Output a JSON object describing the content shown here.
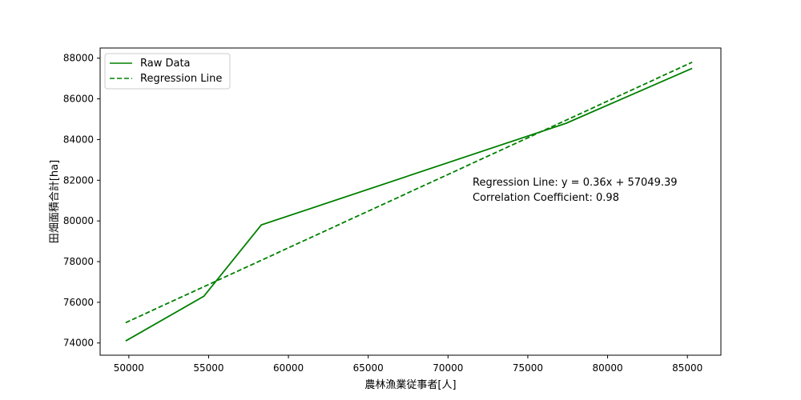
{
  "chart_data": {
    "type": "line",
    "xlabel": "農林漁業従事者[人]",
    "ylabel": "田畑面積合計[ha]",
    "xlim": [
      48200,
      87100
    ],
    "ylim": [
      73400,
      88500
    ],
    "xticks": [
      50000,
      55000,
      60000,
      65000,
      70000,
      75000,
      80000,
      85000
    ],
    "yticks": [
      74000,
      76000,
      78000,
      80000,
      82000,
      84000,
      86000,
      88000
    ],
    "grid": false,
    "legend_position": "top-left",
    "series": [
      {
        "name": "Raw Data",
        "style": "solid",
        "color": "#008000",
        "x": [
          49800,
          54700,
          58300,
          77400,
          85300
        ],
        "y": [
          74100,
          76300,
          79800,
          84800,
          87500
        ]
      },
      {
        "name": "Regression Line",
        "style": "dashed",
        "color": "#008000",
        "x": [
          49800,
          85300
        ],
        "y": [
          75000,
          87800
        ]
      }
    ],
    "annotations": [
      "Regression Line: y = 0.36x + 57049.39",
      "Correlation Coefficient: 0.98"
    ]
  }
}
